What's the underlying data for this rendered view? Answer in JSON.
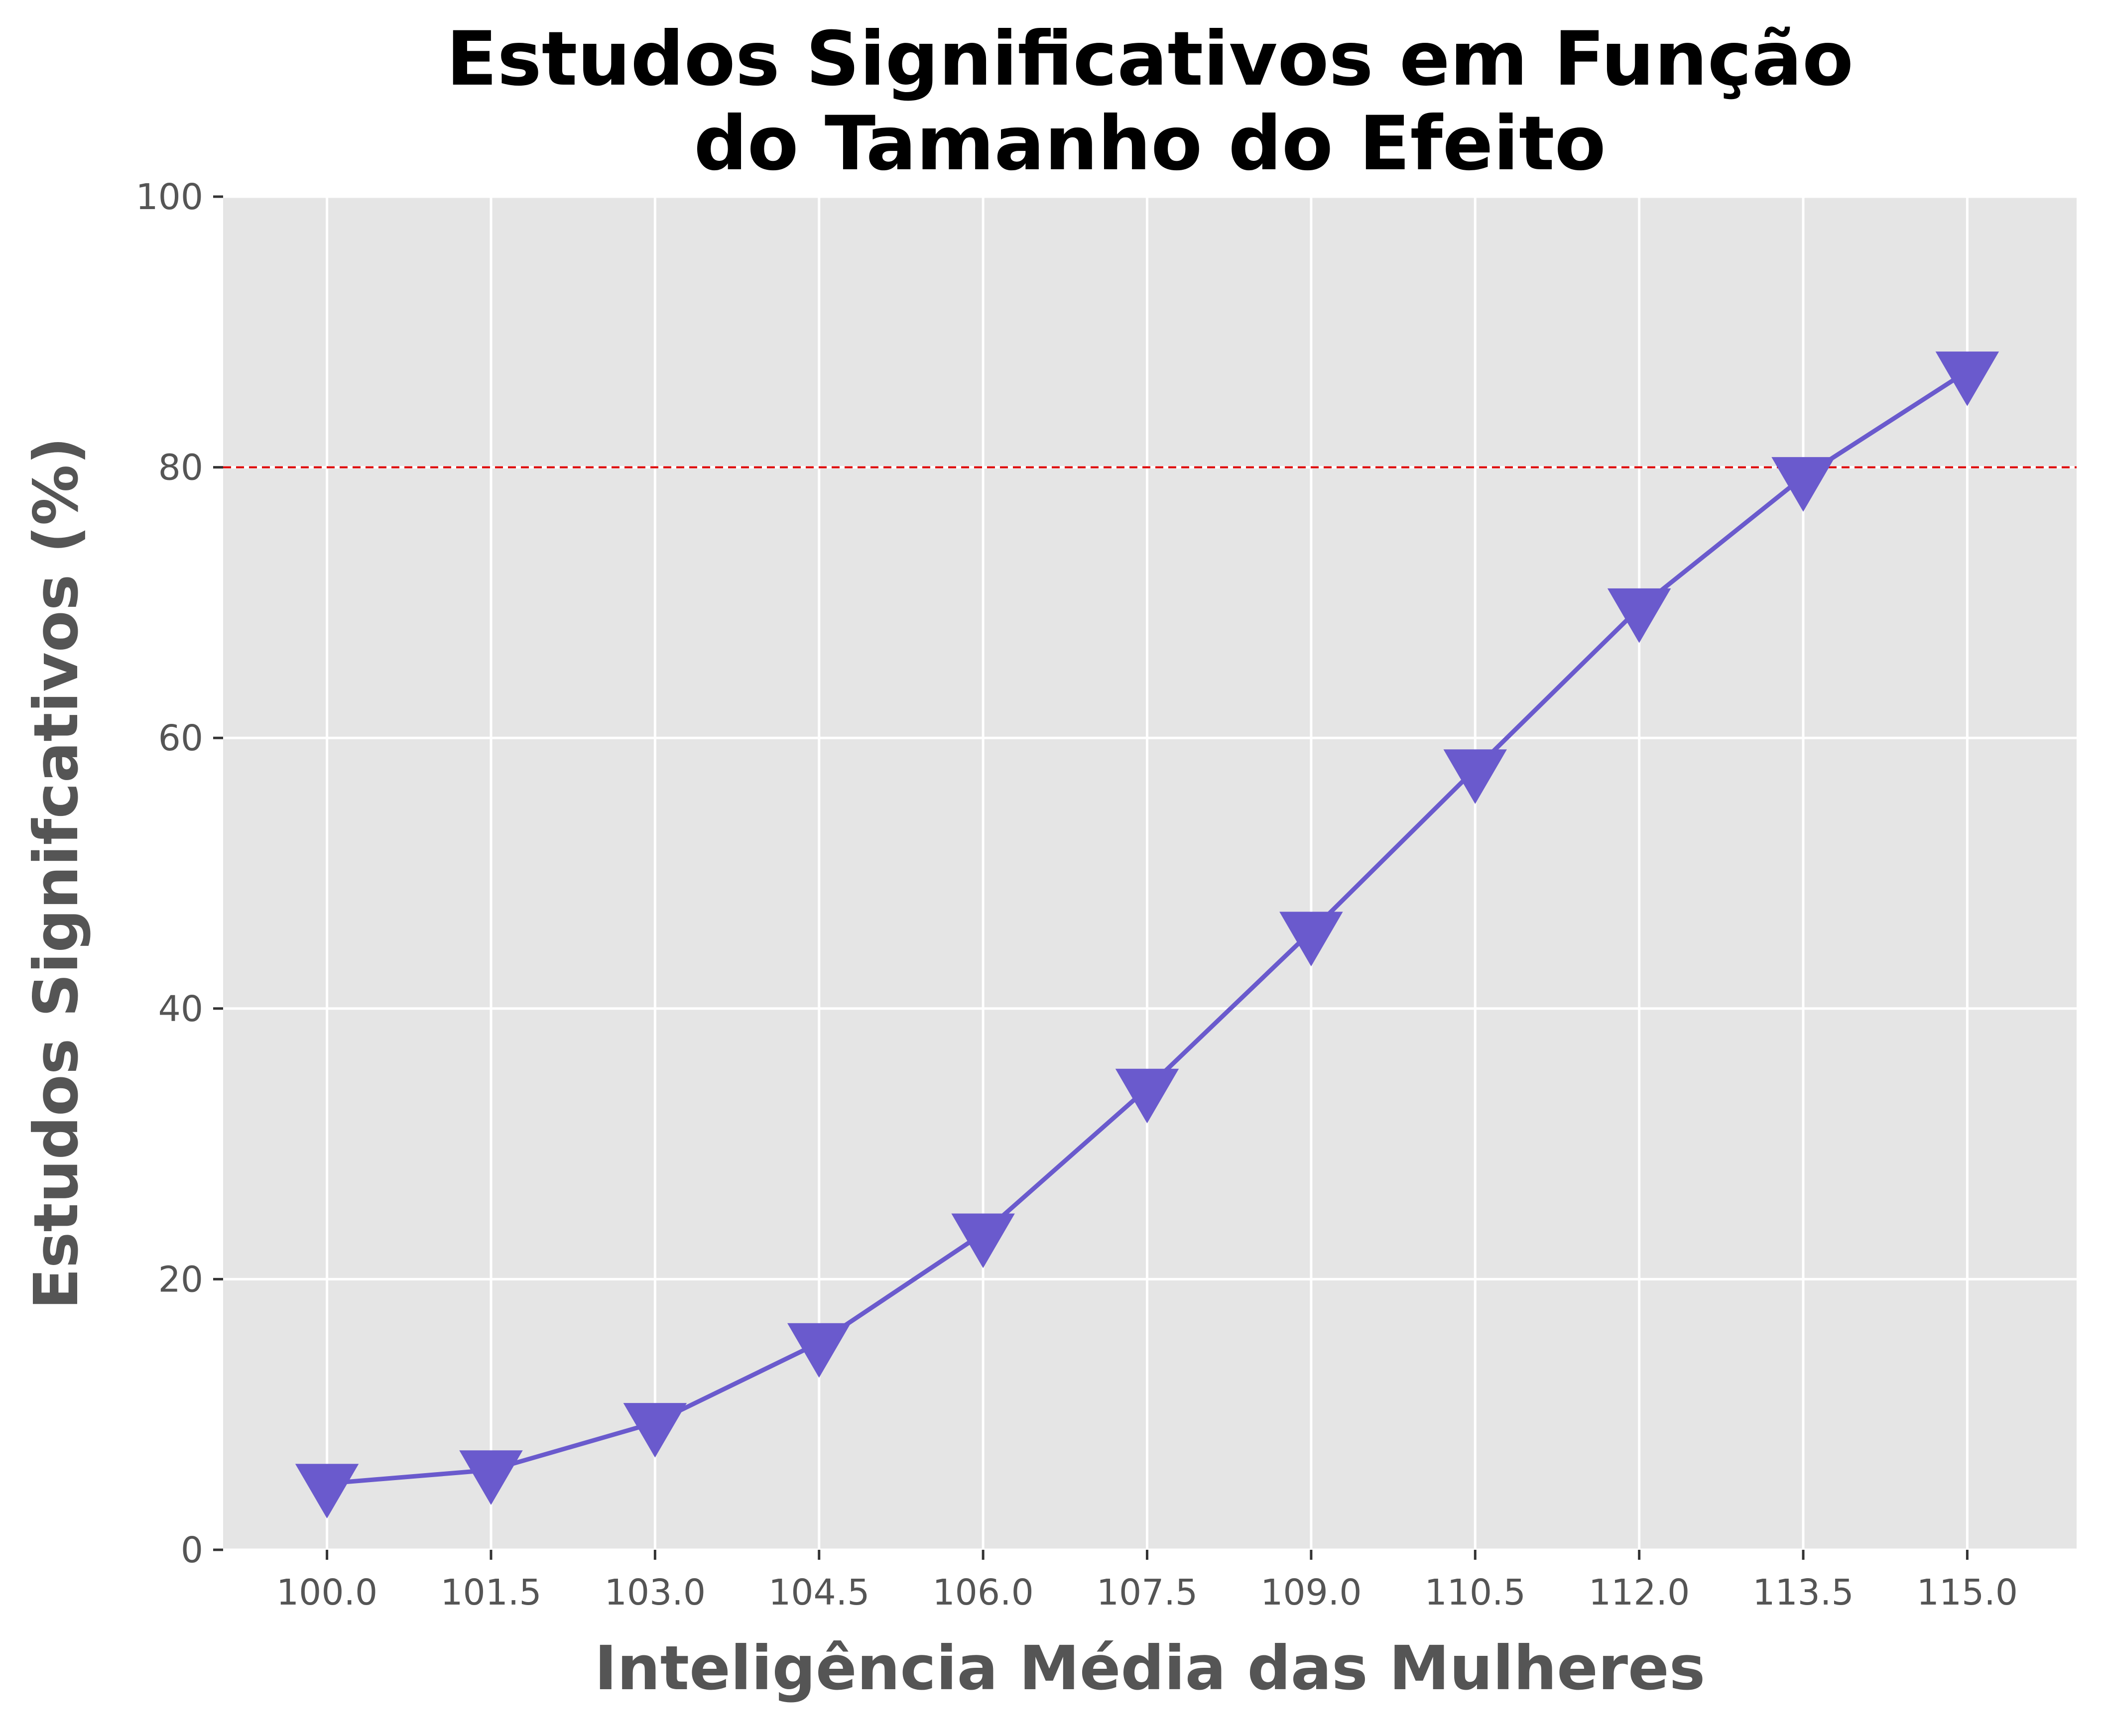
{
  "chart_data": {
    "type": "line",
    "title": "Estudos Significativos em Função\ndo Tamanho do Efeito",
    "title_lines": [
      "Estudos Significativos em Função",
      "do Tamanho do Efeito"
    ],
    "xlabel": "Inteligência Média das Mulheres",
    "ylabel": "Estudos Signifcativos (%)",
    "x": [
      100.0,
      101.5,
      103.0,
      104.5,
      106.0,
      107.5,
      109.0,
      110.5,
      112.0,
      113.5,
      115.0
    ],
    "x_tick_labels": [
      "100.0",
      "101.5",
      "103.0",
      "104.5",
      "106.0",
      "107.5",
      "109.0",
      "110.5",
      "112.0",
      "113.5",
      "115.0"
    ],
    "xlim": [
      99.05,
      116.0
    ],
    "y_ticks": [
      0,
      20,
      40,
      60,
      80,
      100
    ],
    "y_tick_labels": [
      "0",
      "20",
      "40",
      "60",
      "80",
      "100"
    ],
    "ylim": [
      0,
      100
    ],
    "series": [
      {
        "values": [
          4.9,
          5.9,
          9.4,
          15.3,
          23.4,
          34.1,
          45.7,
          57.7,
          69.6,
          79.3,
          87.1
        ],
        "color": "#6a5acd",
        "marker": "triangle-down"
      }
    ],
    "reference_line": {
      "y": 80,
      "color": "#dd0000",
      "style": "dashed"
    },
    "grid": true,
    "background": "#e5e5e5",
    "grid_color": "#ffffff",
    "legend": "none"
  }
}
